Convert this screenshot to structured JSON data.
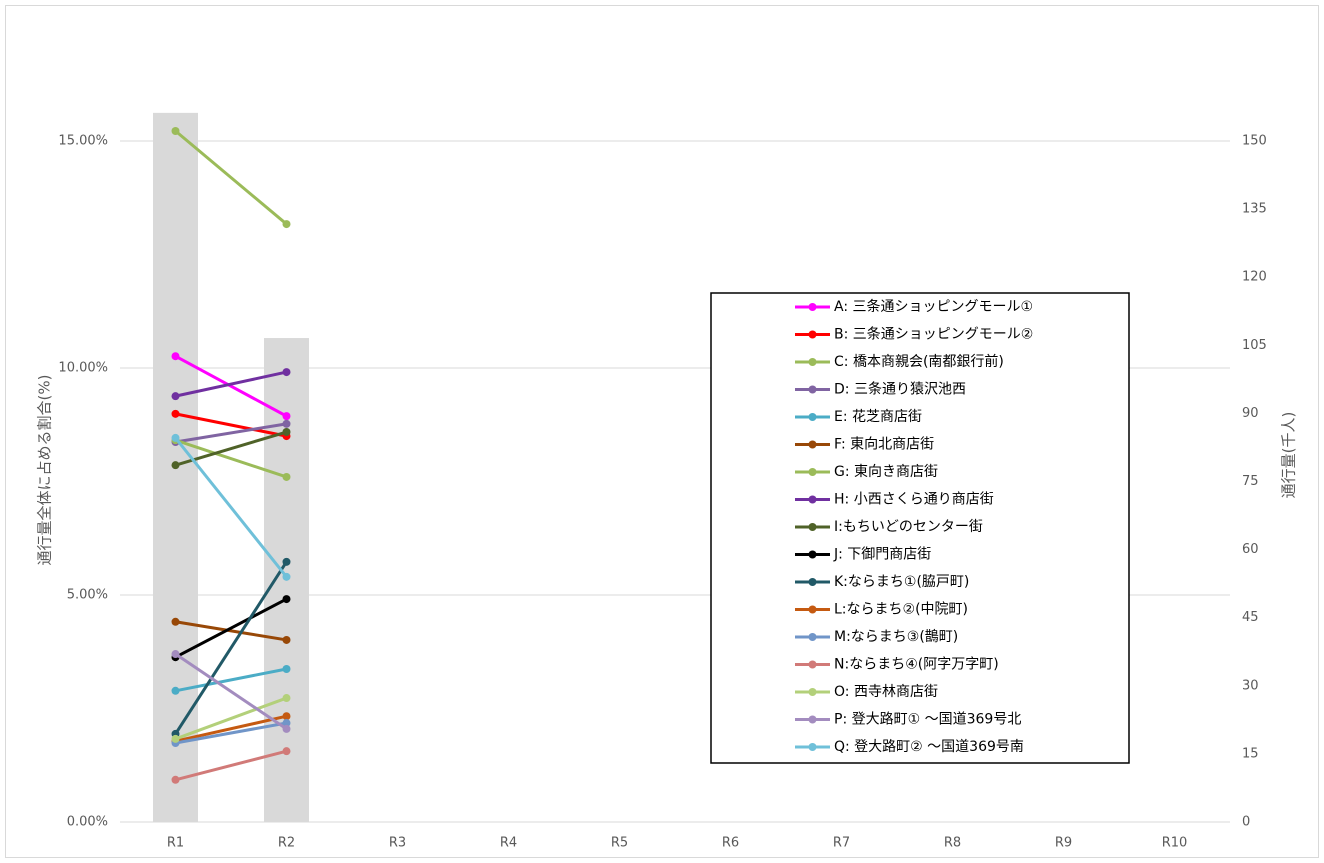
{
  "chart_data": {
    "type": "combo",
    "y_label": "通行量全体に占める割合(%)",
    "y2_label": "通行量(千人)",
    "categories": [
      "R1",
      "R2",
      "R3",
      "R4",
      "R5",
      "R6",
      "R7",
      "R8",
      "R9",
      "R10"
    ],
    "ylim": [
      0,
      16
    ],
    "yticks": [
      {
        "value": 0,
        "label": "0.00%"
      },
      {
        "value": 5,
        "label": "5.00%"
      },
      {
        "value": 10,
        "label": "10.00%"
      },
      {
        "value": 15,
        "label": "15.00%"
      }
    ],
    "y2lim": [
      0,
      160
    ],
    "y2ticks": [
      0,
      15,
      30,
      45,
      60,
      75,
      90,
      105,
      120,
      135,
      150
    ],
    "grid": true,
    "series": [
      {
        "kind": "bar",
        "axis": "y2",
        "color": "#d9d9d9",
        "values": [
          156.2,
          106.6,
          null,
          null,
          null,
          null,
          null,
          null,
          null,
          null
        ]
      },
      {
        "name": "A: 三条通ショッピングモール①",
        "color": "#ff00ff",
        "values": [
          10.26,
          8.94,
          null,
          null,
          null,
          null,
          null,
          null,
          null,
          null
        ]
      },
      {
        "name": "B: 三条通ショッピングモール②",
        "color": "#ff0000",
        "values": [
          8.99,
          8.5,
          null,
          null,
          null,
          null,
          null,
          null,
          null,
          null
        ]
      },
      {
        "name": "C: 橋本商親会(南都銀行前)",
        "color": "#9bbb59",
        "values": [
          15.22,
          13.17,
          null,
          null,
          null,
          null,
          null,
          null,
          null,
          null
        ]
      },
      {
        "name": "D: 三条通り猿沢池西",
        "color": "#8064a2",
        "values": [
          8.37,
          8.77,
          null,
          null,
          null,
          null,
          null,
          null,
          null,
          null
        ]
      },
      {
        "name": "E: 花芝商店街",
        "color": "#4bacc6",
        "values": [
          2.89,
          3.37,
          null,
          null,
          null,
          null,
          null,
          null,
          null,
          null
        ]
      },
      {
        "name": "F: 東向北商店街",
        "color": "#984807",
        "values": [
          4.41,
          4.01,
          null,
          null,
          null,
          null,
          null,
          null,
          null,
          null
        ]
      },
      {
        "name": "G: 東向き商店街",
        "color": "#9bbb59",
        "values": [
          8.41,
          7.6,
          null,
          null,
          null,
          null,
          null,
          null,
          null,
          null
        ]
      },
      {
        "name": "H: 小西さくら通り商店街",
        "color": "#7030a0",
        "values": [
          9.38,
          9.91,
          null,
          null,
          null,
          null,
          null,
          null,
          null,
          null
        ]
      },
      {
        "name": "I:もちいどのセンター街",
        "color": "#4f6228",
        "values": [
          7.86,
          8.59,
          null,
          null,
          null,
          null,
          null,
          null,
          null,
          null
        ]
      },
      {
        "name": "J: 下御門商店街",
        "color": "#000000",
        "values": [
          3.63,
          4.91,
          null,
          null,
          null,
          null,
          null,
          null,
          null,
          null
        ]
      },
      {
        "name": "K:ならまち①(脇戸町)",
        "color": "#215967",
        "values": [
          1.94,
          5.73,
          null,
          null,
          null,
          null,
          null,
          null,
          null,
          null
        ]
      },
      {
        "name": "L:ならまち②(中院町)",
        "color": "#c55a11",
        "values": [
          1.78,
          2.33,
          null,
          null,
          null,
          null,
          null,
          null,
          null,
          null
        ]
      },
      {
        "name": "M:ならまち③(鵲町)",
        "color": "#7095c8",
        "values": [
          1.74,
          2.18,
          null,
          null,
          null,
          null,
          null,
          null,
          null,
          null
        ]
      },
      {
        "name": "N:ならまち④(阿字万字町)",
        "color": "#d17a78",
        "values": [
          0.93,
          1.56,
          null,
          null,
          null,
          null,
          null,
          null,
          null,
          null
        ]
      },
      {
        "name": "O: 西寺林商店街",
        "color": "#b3d07a",
        "values": [
          1.83,
          2.73,
          null,
          null,
          null,
          null,
          null,
          null,
          null,
          null
        ]
      },
      {
        "name": "P: 登大路町① ～国道369号北",
        "color": "#a38cbf",
        "values": [
          3.7,
          2.05,
          null,
          null,
          null,
          null,
          null,
          null,
          null,
          null
        ]
      },
      {
        "name": "Q: 登大路町② ～国道369号南",
        "color": "#6fc0d9",
        "values": [
          8.46,
          5.4,
          null,
          null,
          null,
          null,
          null,
          null,
          null,
          null
        ]
      }
    ]
  }
}
